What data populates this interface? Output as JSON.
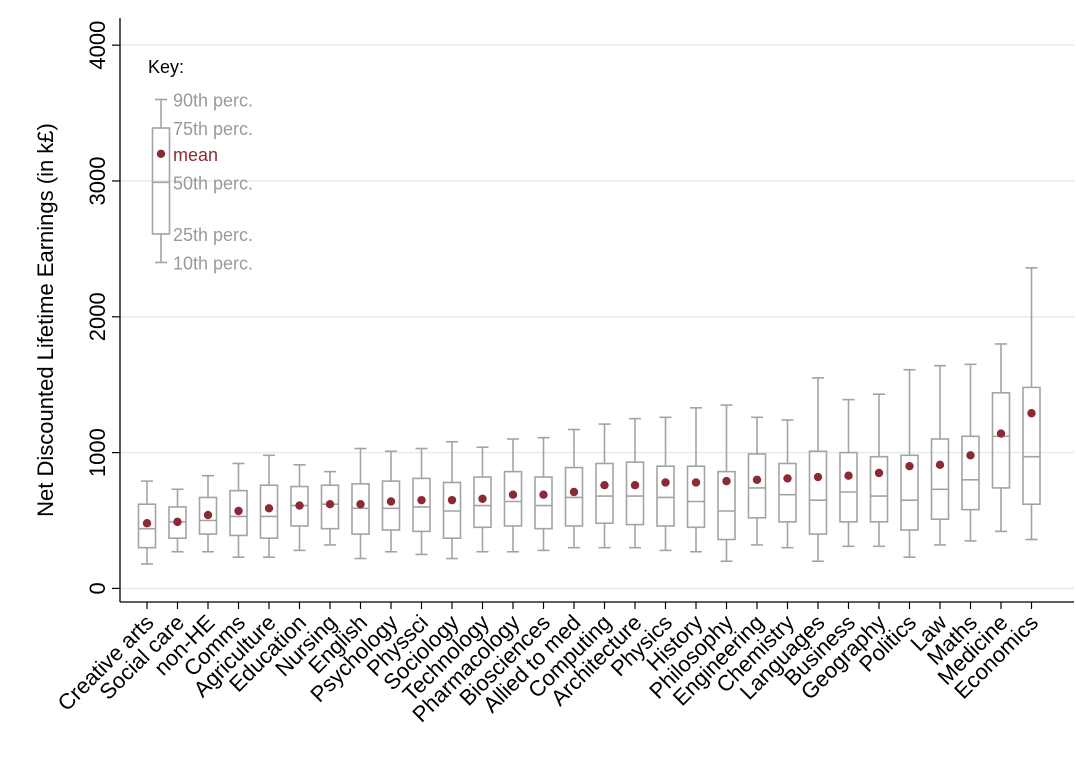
{
  "chart_data": {
    "type": "boxplot",
    "ylabel": "Net Discounted Lifetime Earnings (in k£)",
    "ylim": [
      -100,
      4200
    ],
    "yticks": [
      "0",
      "1000",
      "2000",
      "3000",
      "4000"
    ],
    "grid": true,
    "colors": {
      "box": "#a3a3a3",
      "mean": "#8b2a35",
      "grid": "#e2ece8"
    },
    "categories": [
      "Creative arts",
      "Social care",
      "non-HE",
      "Comms",
      "Agriculture",
      "Education",
      "Nursing",
      "English",
      "Psychology",
      "Physsci",
      "Sociology",
      "Technology",
      "Pharmacology",
      "Biosciences",
      "Allied to med",
      "Computing",
      "Architecture",
      "Physics",
      "History",
      "Philosophy",
      "Engineering",
      "Chemistry",
      "Languages",
      "Business",
      "Geography",
      "Politics",
      "Law",
      "Maths",
      "Medicine",
      "Economics"
    ],
    "stats": {
      "p10": [
        180,
        270,
        270,
        230,
        230,
        280,
        320,
        220,
        270,
        250,
        220,
        270,
        270,
        280,
        300,
        300,
        300,
        280,
        270,
        200,
        320,
        300,
        200,
        310,
        310,
        230,
        320,
        350,
        420,
        360
      ],
      "p25": [
        300,
        370,
        400,
        390,
        370,
        460,
        440,
        400,
        430,
        420,
        370,
        450,
        460,
        440,
        460,
        480,
        470,
        460,
        450,
        360,
        520,
        490,
        400,
        490,
        490,
        430,
        510,
        580,
        740,
        620
      ],
      "p50": [
        440,
        490,
        500,
        530,
        530,
        610,
        620,
        590,
        590,
        600,
        570,
        610,
        640,
        610,
        670,
        680,
        680,
        670,
        640,
        570,
        740,
        690,
        650,
        710,
        680,
        650,
        730,
        800,
        1120,
        970
      ],
      "p75": [
        620,
        600,
        670,
        720,
        760,
        750,
        760,
        770,
        790,
        810,
        780,
        820,
        860,
        820,
        890,
        920,
        930,
        900,
        900,
        860,
        990,
        920,
        1010,
        1000,
        970,
        980,
        1100,
        1120,
        1440,
        1480
      ],
      "p90": [
        790,
        730,
        830,
        920,
        980,
        910,
        860,
        1030,
        1010,
        1030,
        1080,
        1040,
        1100,
        1110,
        1170,
        1210,
        1250,
        1260,
        1330,
        1350,
        1260,
        1240,
        1550,
        1390,
        1430,
        1610,
        1640,
        1650,
        1800,
        2360
      ],
      "mean": [
        480,
        490,
        540,
        570,
        590,
        610,
        620,
        620,
        640,
        650,
        650,
        660,
        690,
        690,
        710,
        760,
        760,
        780,
        780,
        790,
        800,
        810,
        820,
        830,
        850,
        900,
        910,
        980,
        1140,
        1290
      ]
    },
    "key": {
      "title": "Key:",
      "labels": [
        "90th perc.",
        "75th perc.",
        "mean",
        "50th perc.",
        "25th perc.",
        "10th perc."
      ],
      "values": {
        "p10": 2400,
        "p25": 2610,
        "p50": 2990,
        "p75": 3390,
        "p90": 3600,
        "mean": 3200
      }
    }
  }
}
